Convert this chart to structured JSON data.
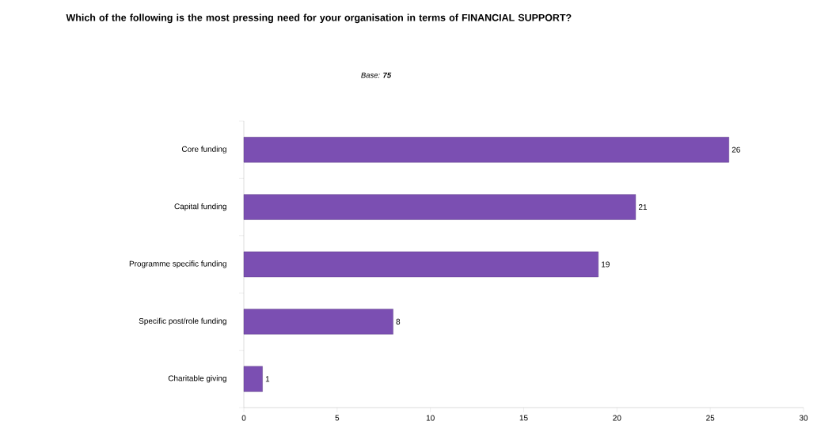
{
  "chart_data": {
    "type": "bar",
    "orientation": "horizontal",
    "title": "Which of the following is the most pressing need for your organisation in terms of FINANCIAL SUPPORT?",
    "subtitle": "Base: **75**",
    "categories": [
      "Core funding",
      "Capital funding",
      "Programme specific funding",
      "Specific post/role funding",
      "Charitable giving"
    ],
    "values": [
      26,
      21,
      19,
      8,
      1
    ],
    "color": "#7b4fb2",
    "xlim": [
      0,
      30
    ],
    "xticks": [
      0,
      5,
      10,
      15,
      20,
      25,
      30
    ],
    "data_labels": true,
    "grid": false
  }
}
